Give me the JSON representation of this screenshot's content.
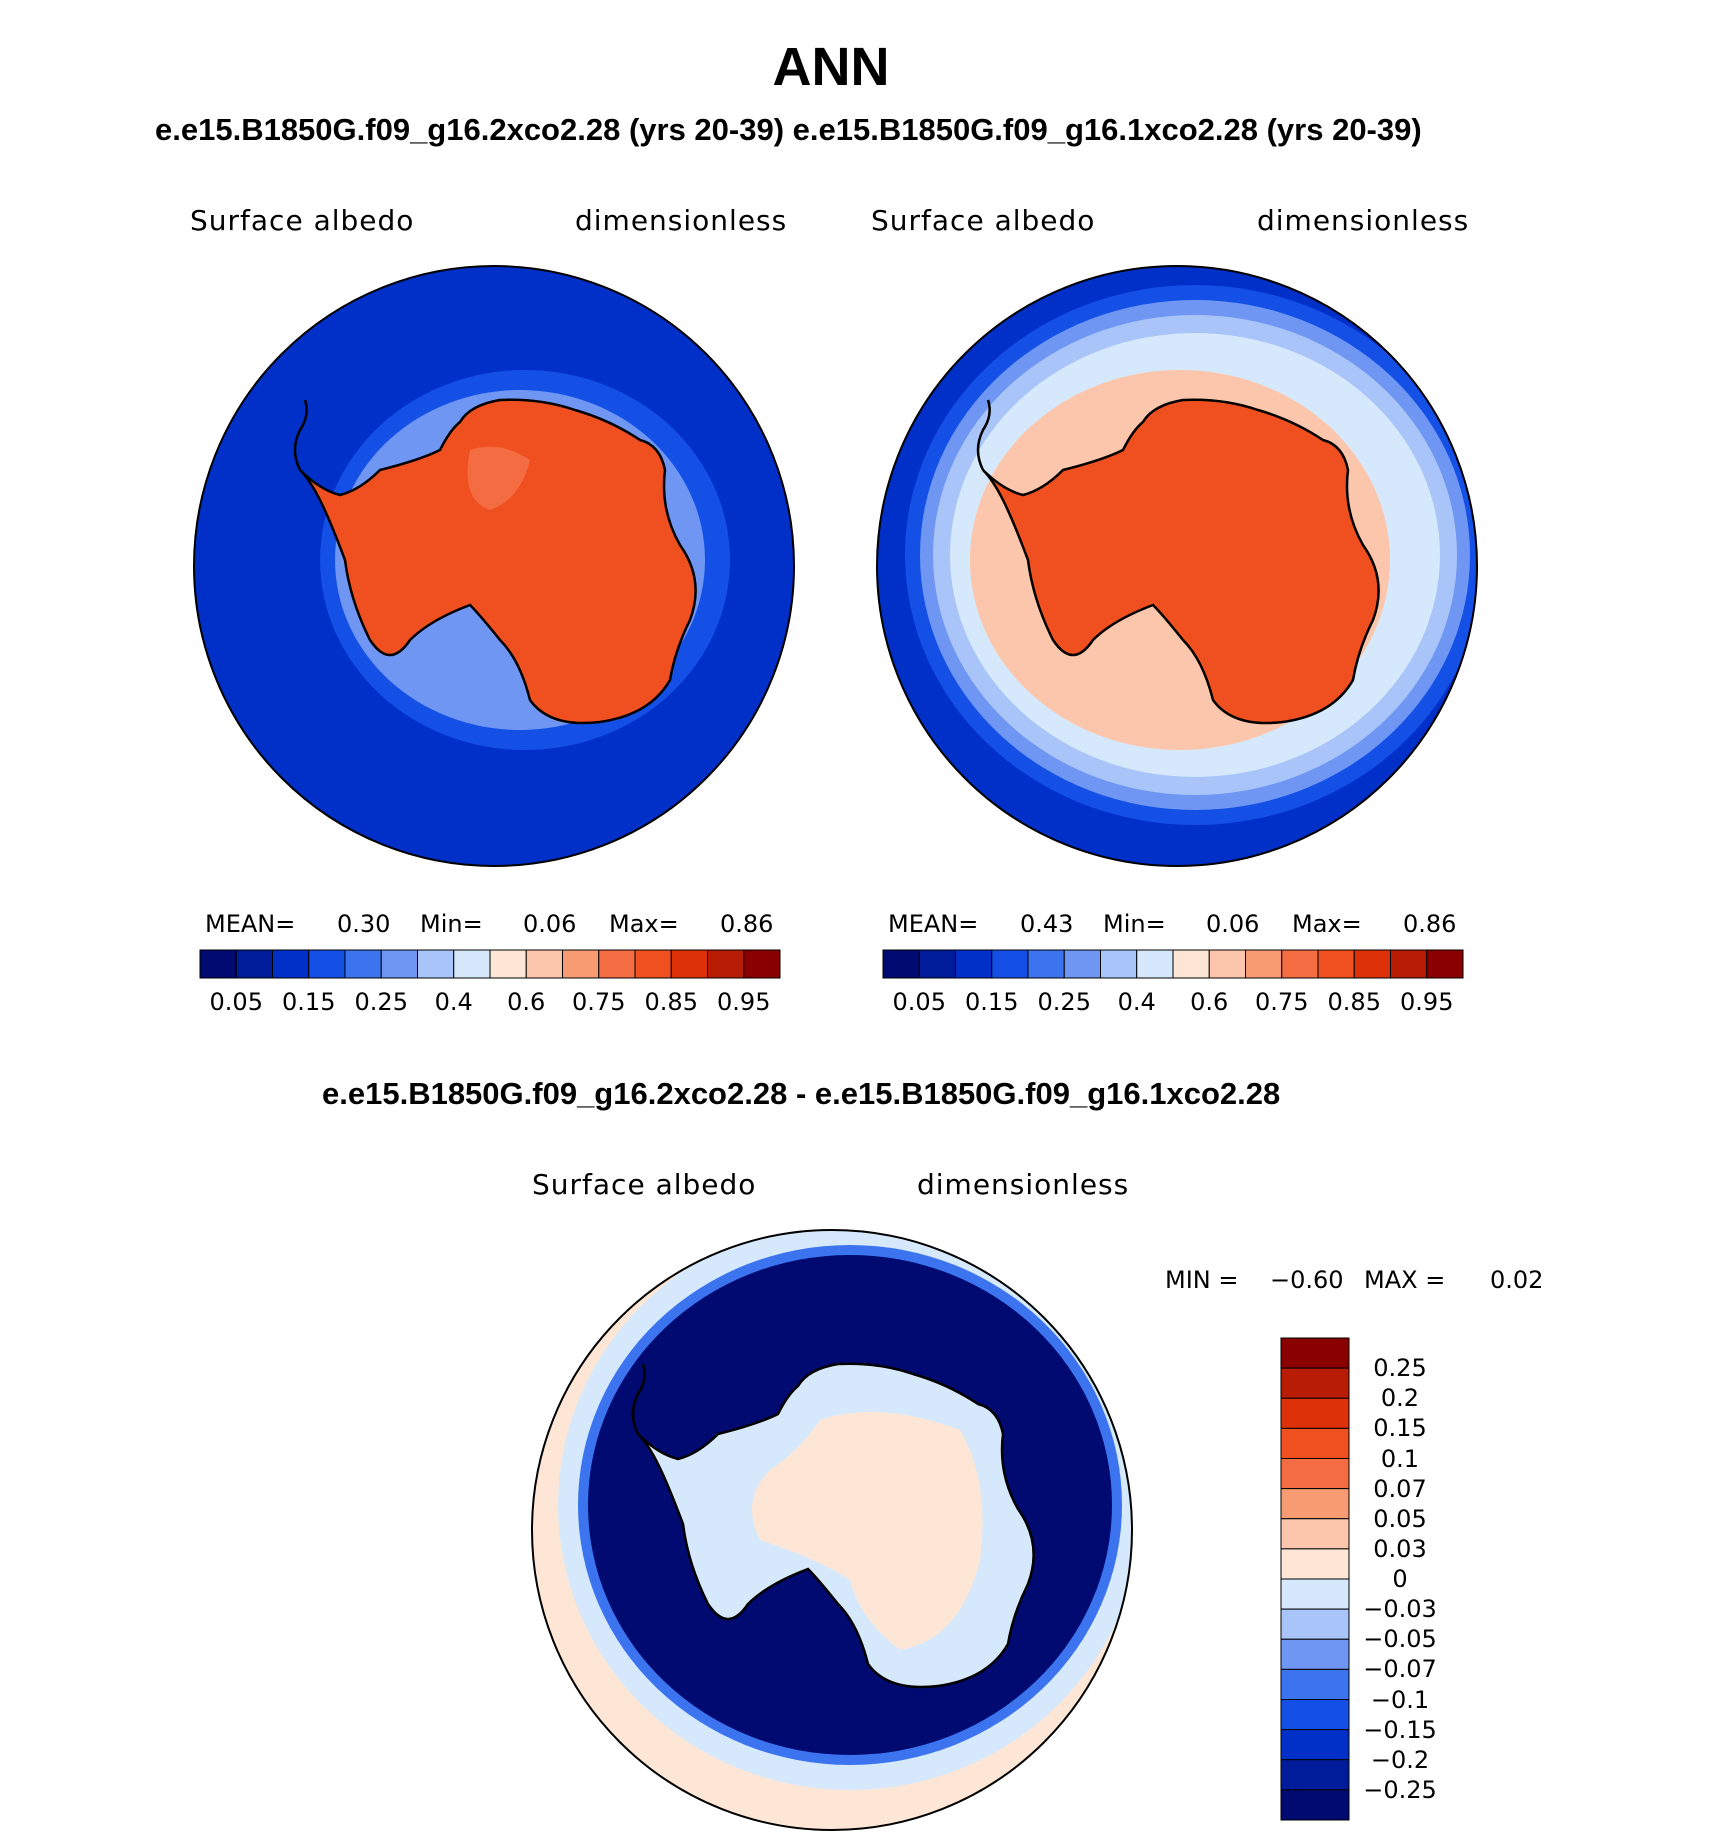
{
  "title": "ANN",
  "panels_subtitle": "e.e15.B1850G.f09_g16.2xco2.28 (yrs 20-39) e.e15.B1850G.f09_g16.1xco2.28 (yrs 20-39)",
  "diff_subtitle": "e.e15.B1850G.f09_g16.2xco2.28 - e.e15.B1850G.f09_g16.1xco2.28",
  "left_panel": {
    "variable": "Surface albedo",
    "units": "dimensionless",
    "mean_label": "MEAN=",
    "mean": "0.30",
    "min_label": "Min=",
    "min": "0.06",
    "max_label": "Max=",
    "max": "0.86"
  },
  "right_panel": {
    "variable": "Surface albedo",
    "units": "dimensionless",
    "mean_label": "MEAN=",
    "mean": "0.43",
    "min_label": "Min=",
    "min": "0.06",
    "max_label": "Max=",
    "max": "0.86"
  },
  "diff_panel": {
    "variable": "Surface albedo",
    "units": "dimensionless",
    "min_label": "MIN =",
    "min": "−0.60",
    "max_label": "MAX =",
    "max": "0.02"
  },
  "abs_colorbar": {
    "colors": [
      "#000a70",
      "#001c9a",
      "#0030c8",
      "#1450e6",
      "#3c74f0",
      "#6e96f2",
      "#a8c4f8",
      "#d6e8fb",
      "#fde6d6",
      "#fcc6ac",
      "#f79b72",
      "#f36c42",
      "#f0501f",
      "#dd3208",
      "#b81c05",
      "#8a0000"
    ],
    "tick_labels": [
      "0.05",
      "0.15",
      "0.25",
      "0.4",
      "0.6",
      "0.75",
      "0.85",
      "0.95"
    ]
  },
  "diff_colorbar": {
    "colors": [
      "#8a0000",
      "#b81c05",
      "#dd3208",
      "#f0501f",
      "#f36c42",
      "#f79b72",
      "#fcc6ac",
      "#fde6d6",
      "#d6e8fb",
      "#a8c4f8",
      "#6e96f2",
      "#3c74f0",
      "#1450e6",
      "#0030c8",
      "#001c9a",
      "#000a70"
    ],
    "tick_labels": [
      "0.25",
      "0.2",
      "0.15",
      "0.1",
      "0.07",
      "0.05",
      "0.03",
      "0",
      "−0.03",
      "−0.05",
      "−0.07",
      "−0.1",
      "−0.15",
      "−0.2",
      "−0.25"
    ]
  },
  "map_colors": {
    "ocean_open": "#0030c8",
    "ice_land": "#f0501f",
    "ice_land_light": "#f36c42",
    "diff_far": "#fde6d6",
    "diff_mid": "#d6e8fb",
    "diff_ring": "#000a70"
  }
}
